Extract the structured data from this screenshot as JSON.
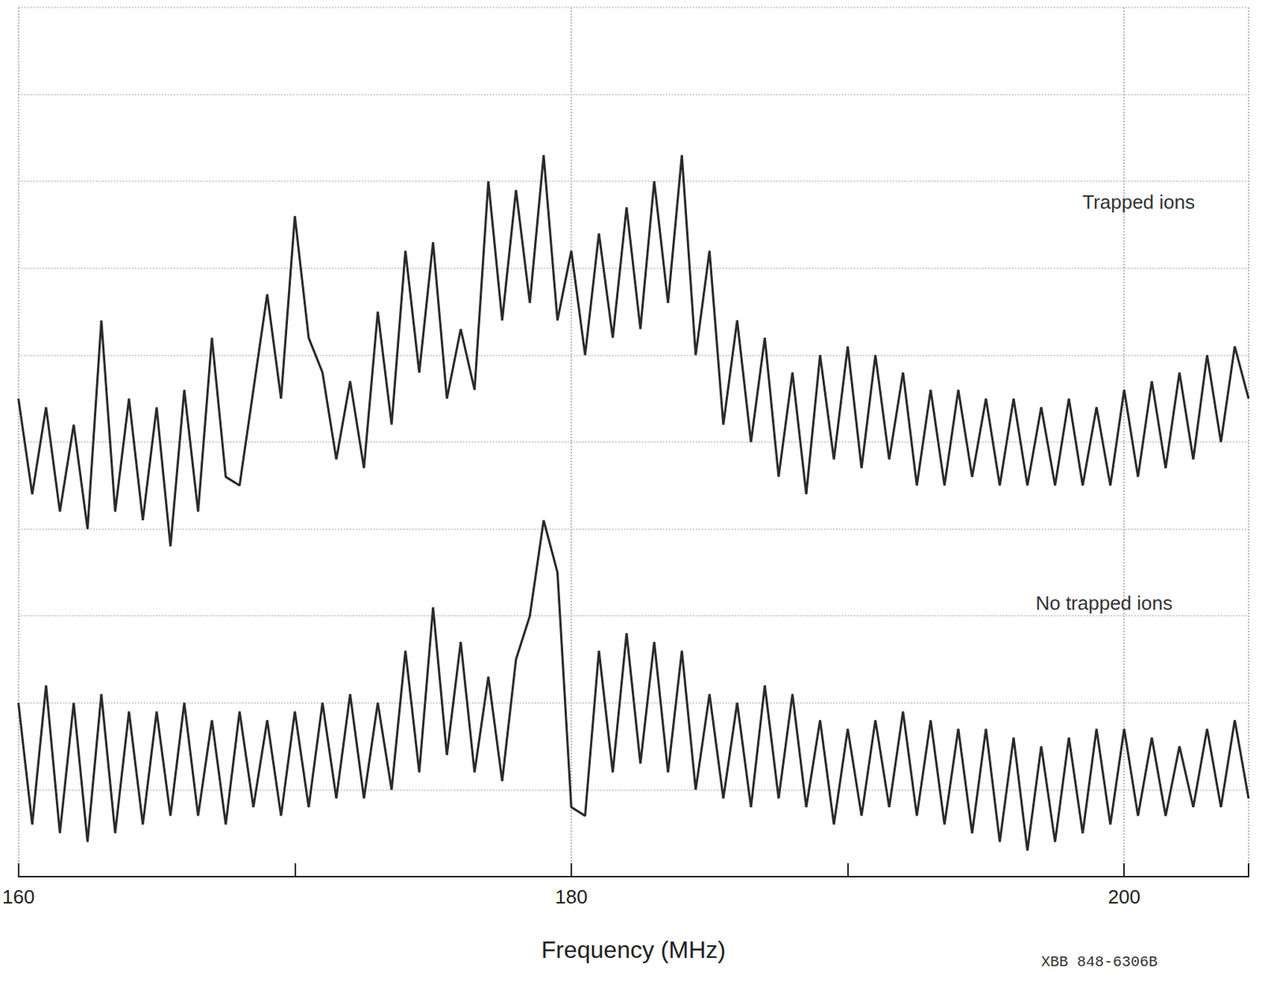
{
  "chart_data": {
    "type": "line",
    "xlabel": "Frequency (MHz)",
    "x": [
      160,
      160.5,
      161,
      161.5,
      162,
      162.5,
      163,
      163.5,
      164,
      164.5,
      165,
      165.5,
      166,
      166.5,
      167,
      167.5,
      168,
      168.5,
      169,
      169.5,
      170,
      170.5,
      171,
      171.5,
      172,
      172.5,
      173,
      173.5,
      174,
      174.5,
      175,
      175.5,
      176,
      176.5,
      177,
      177.5,
      178,
      178.5,
      179,
      179.5,
      180,
      180.5,
      181,
      181.5,
      182,
      182.5,
      183,
      183.5,
      184,
      184.5,
      185,
      185.5,
      186,
      186.5,
      187,
      187.5,
      188,
      188.5,
      189,
      189.5,
      190,
      190.5,
      191,
      191.5,
      192,
      192.5,
      193,
      193.5,
      194,
      194.5,
      195,
      195.5,
      196,
      196.5,
      197,
      197.5,
      198,
      198.5,
      199,
      199.5,
      200,
      200.5,
      201,
      201.5,
      202,
      202.5,
      203,
      203.5,
      204,
      204.5
    ],
    "series": [
      {
        "name": "Trapped ions",
        "color": "#2a2a2a",
        "values": [
          55,
          44,
          54,
          42,
          52,
          40,
          64,
          42,
          55,
          41,
          54,
          38,
          56,
          42,
          62,
          46,
          45,
          56,
          67,
          55,
          76,
          62,
          58,
          48,
          57,
          47,
          65,
          52,
          72,
          58,
          73,
          55,
          63,
          56,
          80,
          64,
          79,
          66,
          83,
          64,
          72,
          60,
          74,
          62,
          77,
          63,
          80,
          66,
          83,
          60,
          72,
          52,
          64,
          50,
          62,
          46,
          58,
          44,
          60,
          48,
          61,
          47,
          60,
          48,
          58,
          45,
          56,
          45,
          56,
          46,
          55,
          45,
          55,
          45,
          54,
          45,
          55,
          45,
          54,
          45,
          56,
          46,
          57,
          47,
          58,
          48,
          60,
          50,
          61,
          55
        ]
      },
      {
        "name": "No trapped ions",
        "color": "#2a2a2a",
        "values": [
          20,
          6,
          22,
          5,
          20,
          4,
          21,
          5,
          19,
          6,
          19,
          7,
          20,
          7,
          18,
          6,
          19,
          8,
          18,
          7,
          19,
          8,
          20,
          9,
          21,
          9,
          20,
          10,
          26,
          12,
          31,
          14,
          27,
          12,
          23,
          11,
          25,
          30,
          41,
          35,
          8,
          7,
          26,
          12,
          28,
          13,
          27,
          12,
          26,
          10,
          21,
          9,
          20,
          8,
          22,
          9,
          21,
          8,
          18,
          6,
          17,
          7,
          18,
          8,
          19,
          7,
          18,
          6,
          17,
          5,
          17,
          4,
          16,
          3,
          15,
          4,
          16,
          5,
          17,
          6,
          17,
          7,
          16,
          7,
          15,
          8,
          17,
          8,
          18,
          9
        ]
      }
    ],
    "xlim": [
      160,
      204.5
    ],
    "xticks": [
      160,
      180,
      200
    ],
    "ylim": [
      0,
      100
    ],
    "yticks": [
      0,
      10,
      20,
      30,
      40,
      50,
      60,
      70,
      80,
      90,
      100
    ],
    "grid": true,
    "tick_labels": "x",
    "annotations": [
      "XBB 848-6306B"
    ]
  }
}
